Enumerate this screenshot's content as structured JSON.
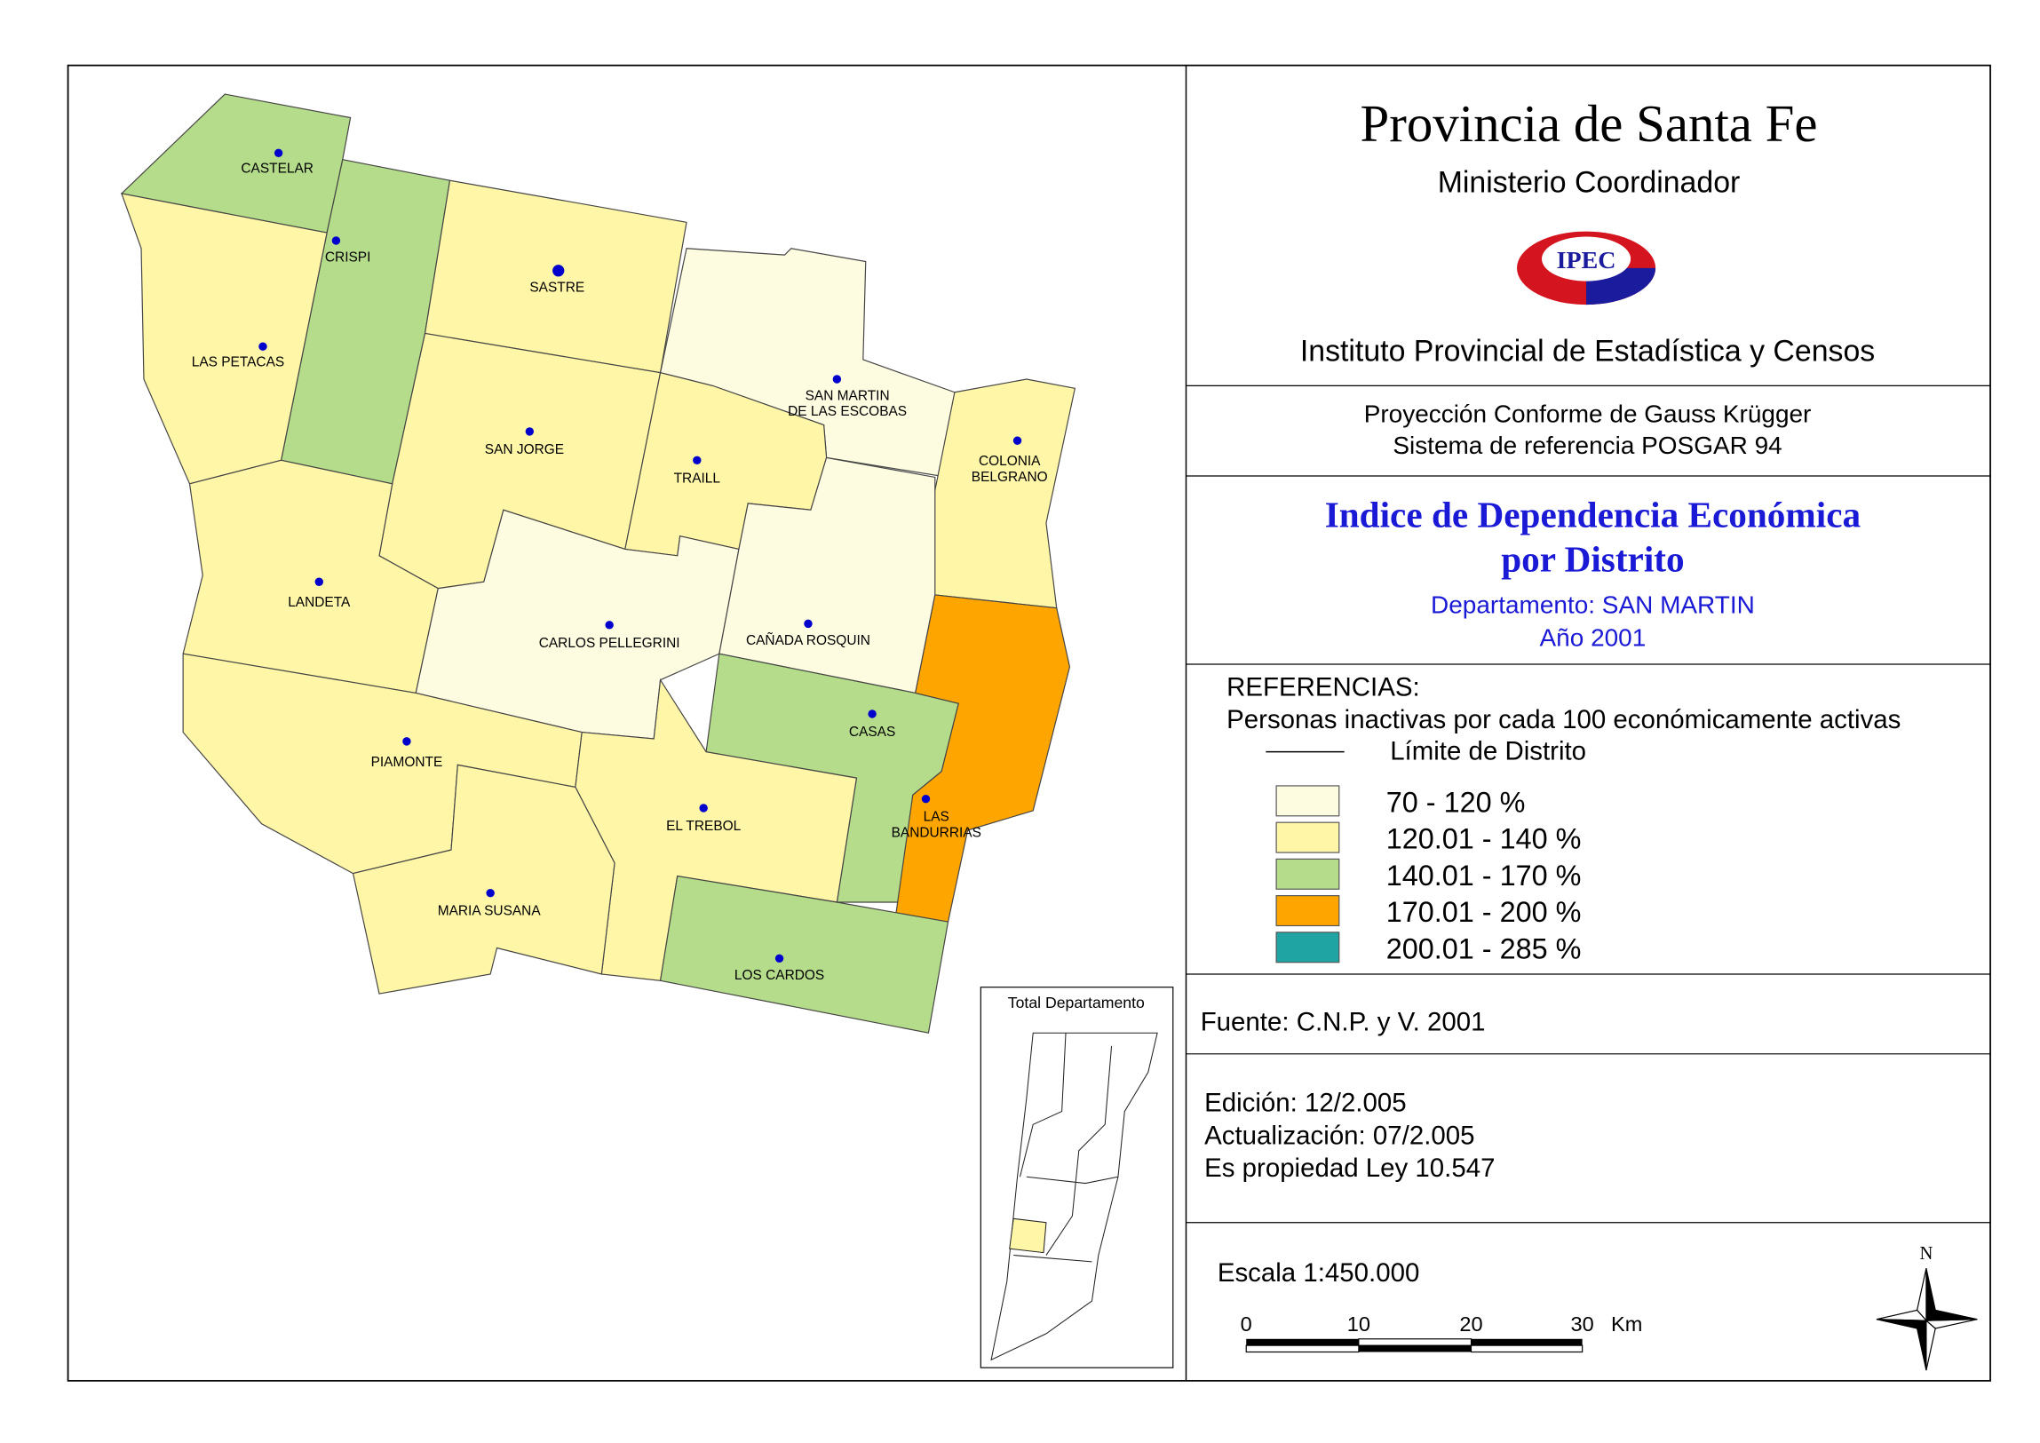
{
  "header": {
    "title": "Provincia de Santa Fe",
    "ministry": "Ministerio Coordinador",
    "logo": "IPEC",
    "institute": "Instituto Provincial de Estadística y Censos"
  },
  "projection": [
    "Proyección Conforme de Gauss Krügger",
    "Sistema de referencia POSGAR 94"
  ],
  "map_title": {
    "lines": [
      "Indice de Dependencia Económica",
      "por Distrito"
    ],
    "department": "Departamento:  SAN MARTIN",
    "year": "Año 2001"
  },
  "references": {
    "title": "REFERENCIAS:",
    "description": "Personas inactivas por cada 100 económicamente activas",
    "boundary": "Límite de  Distrito",
    "items": [
      {
        "label": "70 - 120 %",
        "color": "#fdfbe0"
      },
      {
        "label": "120.01 - 140 %",
        "color": "#fff6a8"
      },
      {
        "label": "140.01 - 170 %",
        "color": "#b5dc8a"
      },
      {
        "label": "170.01 - 200 %",
        "color": "#ffa500"
      },
      {
        "label": "200.01 - 285 %",
        "color": "#1fa3a3"
      }
    ]
  },
  "source": "Fuente:  C.N.P. y V. 2001",
  "edition": [
    "Edición:  12/2.005",
    "Actualización:  07/2.005",
    "Es propiedad Ley 10.547"
  ],
  "scale": {
    "title": "Escala 1:450.000",
    "labels": [
      "0",
      "10",
      "20",
      "30"
    ],
    "unit": "Km"
  },
  "north": "N",
  "inset_title": "Total Departamento",
  "districts": [
    [
      "CASTELAR"
    ],
    [
      "CRISPI"
    ],
    [
      "LAS PETACAS"
    ],
    [
      "SASTRE"
    ],
    [
      "SAN MARTIN",
      "DE LAS ESCOBAS"
    ],
    [
      "COLONIA",
      "BELGRANO"
    ],
    [
      "SAN JORGE"
    ],
    [
      "TRAILL"
    ],
    [
      "LANDETA"
    ],
    [
      "CARLOS PELLEGRINI"
    ],
    [
      "CAÑADA ROSQUIN"
    ],
    [
      "CASAS"
    ],
    [
      "LAS",
      "BANDURRIAS"
    ],
    [
      "PIAMONTE"
    ],
    [
      "EL TREBOL"
    ],
    [
      "MARIA SUSANA"
    ],
    [
      "LOS CARDOS"
    ]
  ]
}
